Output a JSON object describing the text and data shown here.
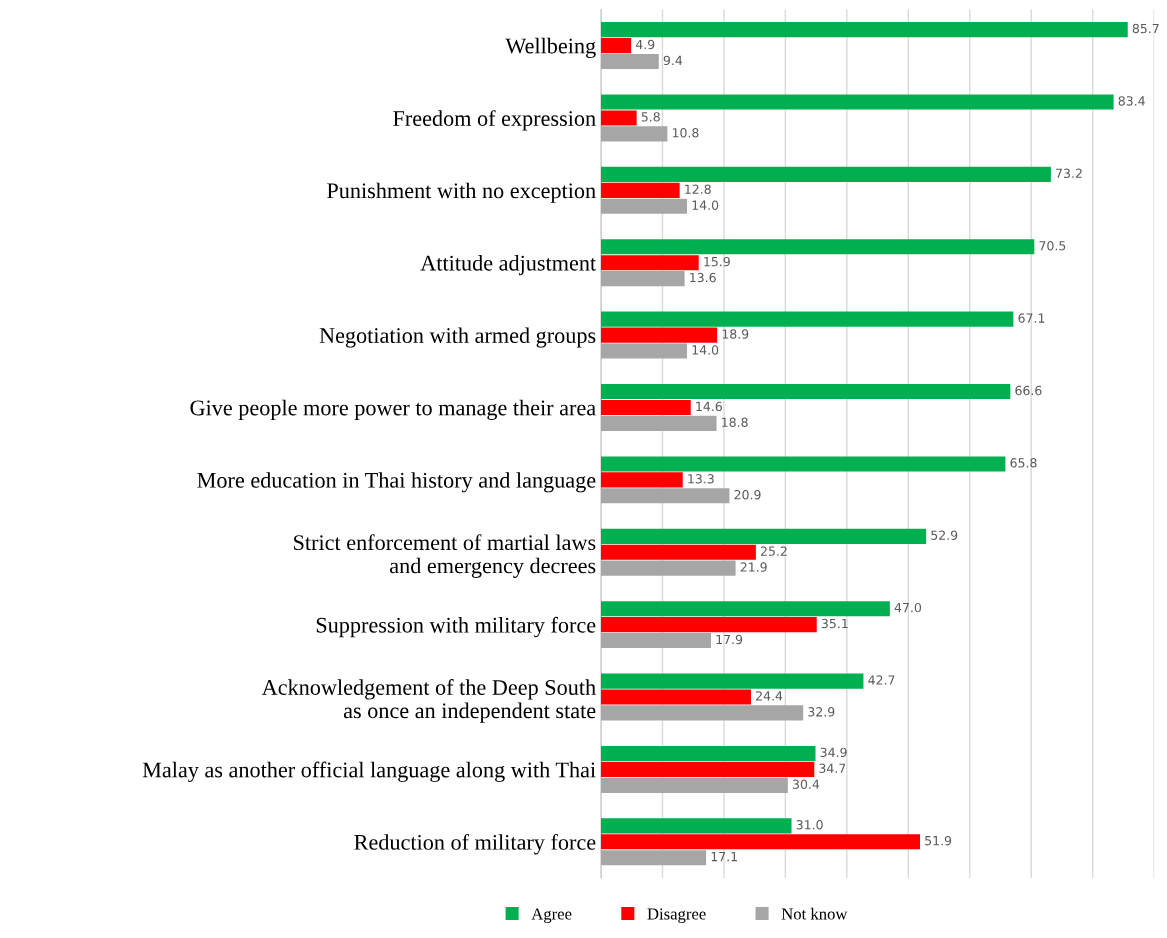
{
  "chart_data": {
    "type": "bar",
    "orientation": "horizontal",
    "categories": [
      "Wellbeing",
      "Freedom of expression",
      "Punishment with no exception",
      "Attitude adjustment",
      "Negotiation with armed groups",
      "Give people more power to manage their area",
      "More education in Thai history and language",
      "Strict enforcement of martial laws\nand emergency decrees",
      "Suppression with military force",
      "Acknowledgement of the Deep South\nas once an independent state",
      "Malay as another official language along with Thai",
      "Reduction of military force"
    ],
    "series": [
      {
        "name": "Agree",
        "color": "#00b050",
        "values": [
          85.7,
          83.4,
          73.2,
          70.5,
          67.1,
          66.6,
          65.8,
          52.9,
          47.0,
          42.7,
          34.9,
          31.0
        ],
        "value_labels": [
          "85.7",
          "83.4",
          "73.2",
          "70.5",
          "67.1",
          "66.6",
          "65.8",
          "52.9",
          "47.0",
          "42.7",
          "34.9",
          "31.0"
        ]
      },
      {
        "name": "Disagree",
        "color": "#ff0000",
        "values": [
          4.9,
          5.8,
          12.8,
          15.9,
          18.9,
          14.6,
          13.3,
          25.2,
          35.1,
          24.4,
          34.7,
          51.9
        ],
        "value_labels": [
          "4.9",
          "5.8",
          "12.8",
          "15.9",
          "18.9",
          "14.6",
          "13.3",
          "25.2",
          "35.1",
          "24.4",
          "34.7",
          "51.9"
        ]
      },
      {
        "name": "Not know",
        "color": "#a6a6a6",
        "values": [
          9.4,
          10.8,
          14.0,
          13.6,
          14.0,
          18.8,
          20.9,
          21.9,
          17.9,
          32.9,
          30.4,
          17.1
        ],
        "value_labels": [
          "9.4",
          "10.8",
          "14.0",
          "13.6",
          "14.0",
          "18.8",
          "20.9",
          "21.9",
          "17.9",
          "32.9",
          "30.4",
          "17.1"
        ]
      }
    ],
    "xlim": [
      0,
      90
    ],
    "xticks": [
      {
        "value": 0,
        "label": null
      },
      {
        "value": 10,
        "label": null
      },
      {
        "value": 20,
        "label": null
      },
      {
        "value": 30,
        "label": null
      },
      {
        "value": 40,
        "label": null
      },
      {
        "value": 50,
        "label": null
      },
      {
        "value": 60,
        "label": null
      },
      {
        "value": 70,
        "label": null
      },
      {
        "value": 80,
        "label": null
      },
      {
        "value": 90,
        "label": null
      }
    ],
    "grid": "x",
    "legend": "bottom",
    "tick_labels": "y"
  }
}
